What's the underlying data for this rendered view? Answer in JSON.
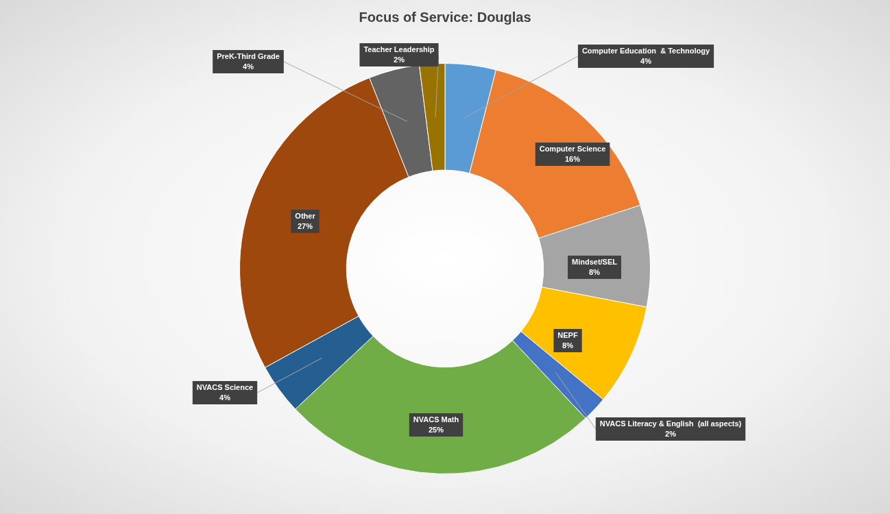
{
  "chart_data": {
    "type": "donut",
    "title": "Focus of Service: Douglas",
    "categories": [
      "Computer Education  & Technology",
      "Computer Science",
      "Mindset/SEL",
      "NEPF",
      "NVACS Literacy & English  (all aspects)",
      "NVACS Math",
      "NVACS Science",
      "Other",
      "PreK-Third Grade",
      "Teacher Leadership"
    ],
    "values": [
      4,
      16,
      8,
      8,
      2,
      25,
      4,
      27,
      4,
      2
    ],
    "colors": [
      "#5b9bd5",
      "#ed7d31",
      "#a5a5a5",
      "#ffc000",
      "#4472c4",
      "#70ad47",
      "#255e91",
      "#9e480e",
      "#636363",
      "#997300"
    ],
    "value_labels": [
      "4%",
      "16%",
      "8%",
      "8%",
      "2%",
      "25%",
      "4%",
      "27%",
      "4%",
      "2%"
    ],
    "legend": false
  }
}
